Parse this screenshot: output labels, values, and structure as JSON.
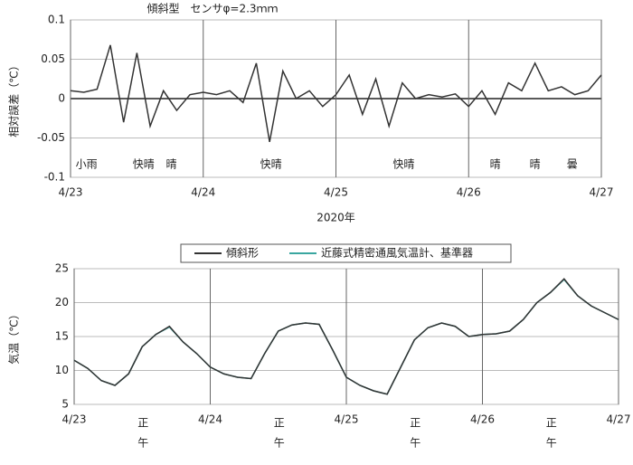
{
  "chart_data": [
    {
      "type": "line",
      "title": "傾斜型　センサφ=2.3ｍｍ",
      "y_label": "相対誤差（℃）",
      "x_label": "2020年",
      "x": [
        0,
        0.1,
        0.2,
        0.3,
        0.4,
        0.5,
        0.6,
        0.7,
        0.8,
        0.9,
        1,
        1.1,
        1.2,
        1.3,
        1.4,
        1.5,
        1.6,
        1.7,
        1.8,
        1.9,
        2,
        2.1,
        2.2,
        2.3,
        2.4,
        2.5,
        2.6,
        2.7,
        2.8,
        2.9,
        3,
        3.1,
        3.2,
        3.3,
        3.4,
        3.5,
        3.6,
        3.7,
        3.8,
        3.9,
        4
      ],
      "series": [
        {
          "name": "傾斜型",
          "color": "#333333",
          "values": [
            0.01,
            0.008,
            0.012,
            0.068,
            -0.03,
            0.058,
            -0.035,
            0.01,
            -0.015,
            0.005,
            0.008,
            0.005,
            0.01,
            -0.005,
            0.045,
            -0.055,
            0.035,
            0,
            0.01,
            -0.01,
            0.005,
            0.03,
            -0.02,
            0.025,
            -0.035,
            0.02,
            0,
            0.005,
            0.002,
            0.006,
            -0.01,
            0.01,
            -0.02,
            0.02,
            0.01,
            0.045,
            0.01,
            0.015,
            0.005,
            0.01,
            0.03
          ]
        }
      ],
      "xlim": [
        0,
        4
      ],
      "xticks": [
        {
          "value": 0,
          "label": "4/23"
        },
        {
          "value": 1,
          "label": "4/24"
        },
        {
          "value": 2,
          "label": "4/25"
        },
        {
          "value": 3,
          "label": "4/26"
        },
        {
          "value": 4,
          "label": "4/27"
        }
      ],
      "ylim": [
        -0.1,
        0.1
      ],
      "yticks": [
        0.1,
        0.05,
        0,
        -0.05,
        -0.1
      ],
      "grid": true,
      "annotations": [
        {
          "text": "小雨",
          "x": 0.12
        },
        {
          "text": "快晴",
          "x": 0.55
        },
        {
          "text": "晴",
          "x": 0.76
        },
        {
          "text": "快晴",
          "x": 1.51
        },
        {
          "text": "快晴",
          "x": 2.51
        },
        {
          "text": "晴",
          "x": 3.2
        },
        {
          "text": "晴",
          "x": 3.5
        },
        {
          "text": "曇",
          "x": 3.78
        }
      ]
    },
    {
      "type": "line",
      "y_label": "気温（℃）",
      "x": [
        0,
        0.1,
        0.2,
        0.3,
        0.4,
        0.5,
        0.6,
        0.7,
        0.8,
        0.9,
        1,
        1.1,
        1.2,
        1.3,
        1.4,
        1.5,
        1.6,
        1.7,
        1.8,
        1.9,
        2,
        2.1,
        2.2,
        2.3,
        2.4,
        2.5,
        2.6,
        2.7,
        2.8,
        2.9,
        3,
        3.1,
        3.2,
        3.3,
        3.4,
        3.5,
        3.6,
        3.7,
        3.8,
        3.9,
        4
      ],
      "series": [
        {
          "name": "傾斜形",
          "color": "#333333",
          "values": [
            11.5,
            10.3,
            8.5,
            7.8,
            9.5,
            13.5,
            15.3,
            16.5,
            14.2,
            12.5,
            10.5,
            9.5,
            9,
            8.8,
            12.5,
            15.8,
            16.7,
            17,
            16.8,
            13,
            9,
            7.8,
            7,
            6.5,
            10.5,
            14.5,
            16.3,
            17,
            16.5,
            15,
            15.3,
            15.4,
            15.8,
            17.5,
            20,
            21.5,
            23.5,
            21,
            19.5,
            18.5,
            17.5
          ]
        },
        {
          "name": "近藤式精密通風気温計、基準器",
          "color": "#3aa6a0",
          "values": [
            11.5,
            10.3,
            8.5,
            7.8,
            9.5,
            13.5,
            15.3,
            16.4,
            14.2,
            12.5,
            10.5,
            9.5,
            9,
            8.8,
            12.5,
            15.8,
            16.7,
            17,
            16.8,
            13,
            9,
            7.8,
            7,
            6.5,
            10.5,
            14.5,
            16.3,
            17,
            16.5,
            15,
            15.3,
            15.4,
            15.8,
            17.5,
            20,
            21.5,
            23.4,
            21,
            19.5,
            18.5,
            17.5
          ]
        }
      ],
      "xlim": [
        0,
        4
      ],
      "xticks": [
        {
          "value": 0,
          "label": "4/23"
        },
        {
          "value": 1,
          "label": "4/24"
        },
        {
          "value": 2,
          "label": "4/25"
        },
        {
          "value": 3,
          "label": "4/26"
        },
        {
          "value": 4,
          "label": "4/27"
        }
      ],
      "ylim": [
        5,
        25
      ],
      "yticks": [
        25,
        20,
        15,
        10,
        5
      ],
      "grid": true,
      "legend": "top",
      "annotations": [
        {
          "text": "正午",
          "x": 0.5
        },
        {
          "text": "正午",
          "x": 1.5
        },
        {
          "text": "正午",
          "x": 2.5
        },
        {
          "text": "正午",
          "x": 3.5
        }
      ]
    }
  ]
}
